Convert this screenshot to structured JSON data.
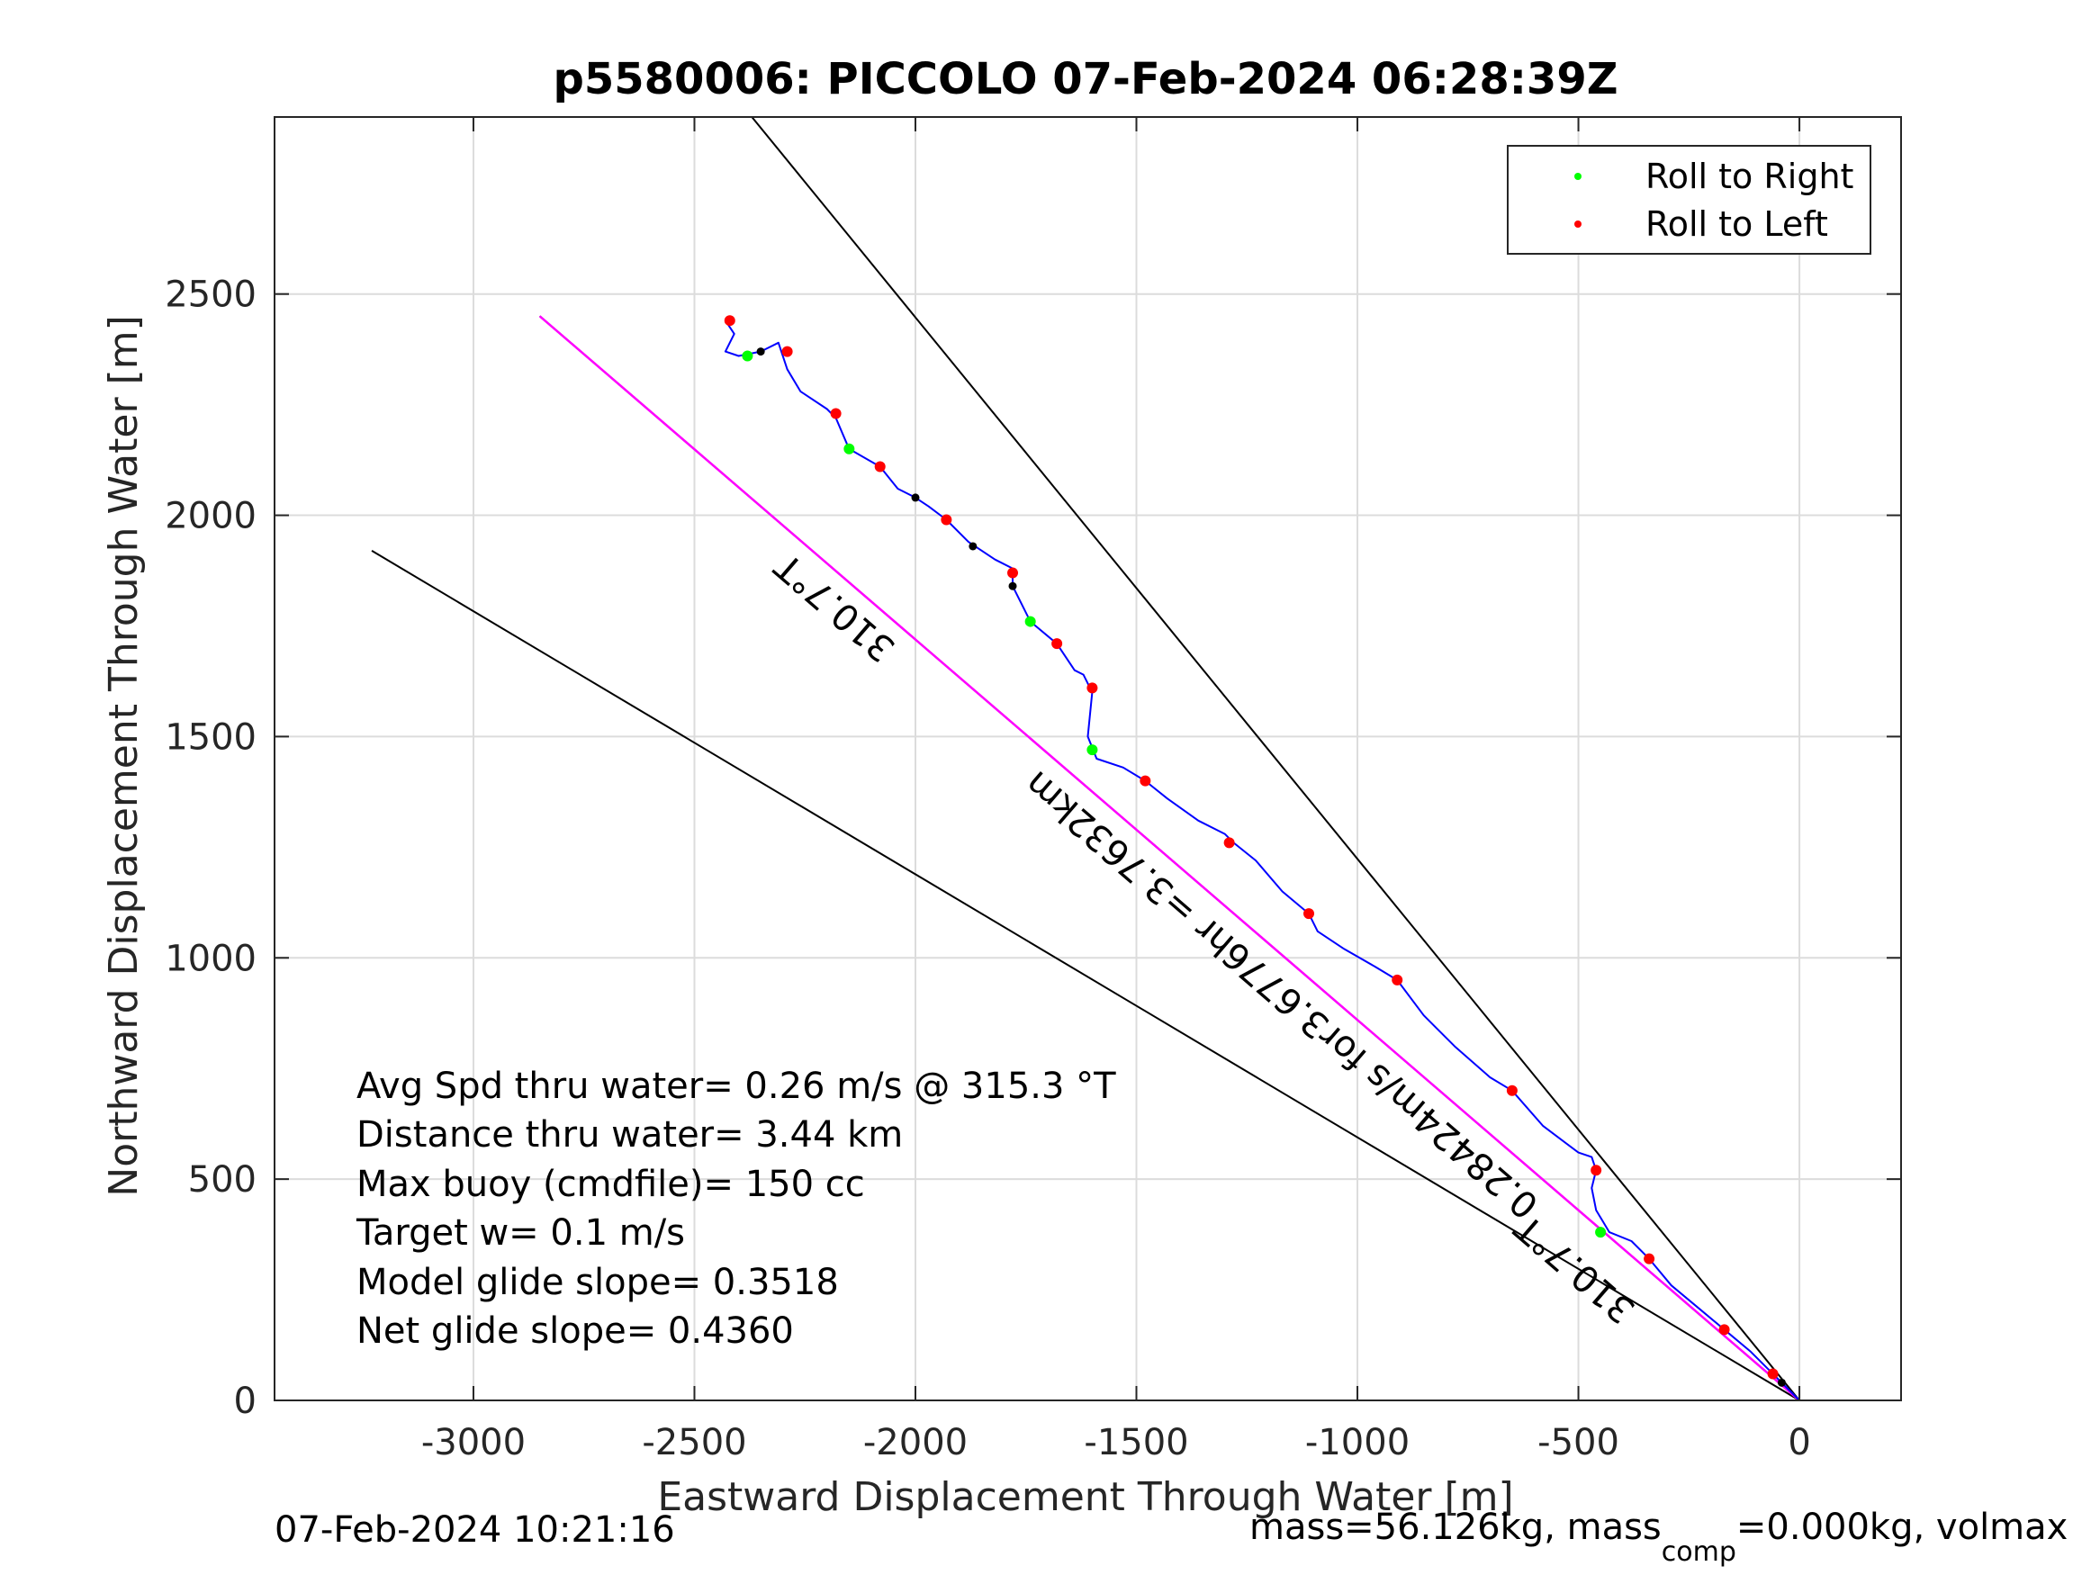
{
  "chart_data": {
    "type": "line",
    "title": "p5580006: PICCOLO 07-Feb-2024 06:28:39Z",
    "xlabel": "Eastward Displacement Through Water [m]",
    "ylabel": "Northward Displacement Through Water [m]",
    "xlim": [
      -3450,
      230
    ],
    "ylim": [
      0,
      2900
    ],
    "xticks": [
      -3000,
      -2500,
      -2000,
      -1500,
      -1000,
      -500,
      0
    ],
    "yticks": [
      0,
      500,
      1000,
      1500,
      2000,
      2500
    ],
    "grid": true,
    "legend_position": "top-right",
    "legend": [
      {
        "label": "Roll to Right",
        "color": "#00ff00"
      },
      {
        "label": "Roll to Left",
        "color": "#ff0000"
      }
    ],
    "track_color": "#0000ff",
    "track": {
      "x": [
        0,
        -60,
        -110,
        -170,
        -230,
        -290,
        -340,
        -380,
        -430,
        -460,
        -470,
        -460,
        -470,
        -500,
        -580,
        -650,
        -700,
        -780,
        -850,
        -910,
        -960,
        -1030,
        -1090,
        -1110,
        -1170,
        -1230,
        -1280,
        -1300,
        -1360,
        -1430,
        -1480,
        -1530,
        -1590,
        -1610,
        -1600,
        -1620,
        -1640,
        -1680,
        -1740,
        -1780,
        -1780,
        -1820,
        -1880,
        -1930,
        -1970,
        -2000,
        -2040,
        -2080,
        -2150,
        -2180,
        -2200,
        -2260,
        -2290,
        -2310,
        -2350,
        -2400,
        -2430,
        -2410,
        -2430
      ],
      "y": [
        0,
        60,
        110,
        160,
        210,
        260,
        320,
        360,
        380,
        430,
        480,
        520,
        550,
        560,
        620,
        700,
        730,
        800,
        870,
        950,
        980,
        1020,
        1060,
        1100,
        1150,
        1220,
        1260,
        1280,
        1310,
        1360,
        1400,
        1430,
        1450,
        1500,
        1600,
        1640,
        1650,
        1710,
        1760,
        1840,
        1880,
        1900,
        1940,
        1990,
        2020,
        2040,
        2060,
        2110,
        2150,
        2220,
        2240,
        2280,
        2330,
        2390,
        2370,
        2360,
        2370,
        2410,
        2440
      ]
    },
    "roll_right_points": [
      [
        -1600,
        1470
      ],
      [
        -1740,
        1760
      ],
      [
        -2150,
        2150
      ],
      [
        -2380,
        2360
      ],
      [
        -450,
        380
      ]
    ],
    "roll_left_points": [
      [
        -60,
        60
      ],
      [
        -170,
        160
      ],
      [
        -340,
        320
      ],
      [
        -460,
        520
      ],
      [
        -650,
        700
      ],
      [
        -910,
        950
      ],
      [
        -1110,
        1100
      ],
      [
        -1290,
        1260
      ],
      [
        -1480,
        1400
      ],
      [
        -1600,
        1610
      ],
      [
        -1680,
        1710
      ],
      [
        -1780,
        1870
      ],
      [
        -1930,
        1990
      ],
      [
        -2080,
        2110
      ],
      [
        -2180,
        2230
      ],
      [
        -2290,
        2370
      ],
      [
        -2420,
        2440
      ]
    ],
    "center_markers": [
      [
        -2000,
        2040
      ],
      [
        -1870,
        1930
      ],
      [
        -1780,
        1840
      ],
      [
        -2350,
        2370
      ],
      [
        -40,
        40
      ]
    ],
    "reference_lines": [
      {
        "from": [
          0,
          0
        ],
        "to": [
          -2850,
          2450
        ],
        "color": "#ff00ff",
        "label": "310.7°T"
      },
      {
        "from": [
          0,
          0
        ],
        "to": [
          -2850,
          2450
        ],
        "color": "#000000",
        "label": "0.28424m/s for3.6776hr =3.7632km"
      },
      {
        "from": [
          0,
          0
        ],
        "to": [
          -2370,
          2900
        ],
        "color": "#000000"
      },
      {
        "from": [
          0,
          0
        ],
        "to": [
          -3230,
          1920
        ],
        "color": "#000000"
      },
      {
        "label": "310.7°T"
      }
    ],
    "annotations": [
      "Avg Spd thru water=  0.26 m/s @ 315.3 °T",
      "Distance thru water=  3.44 km",
      "Max buoy (cmdfile)= 150 cc",
      "Target w= 0.1 m/s",
      "Model glide slope= 0.3518",
      "Net glide slope= 0.4360"
    ]
  },
  "footer": {
    "timestamp": "07-Feb-2024 10:21:16",
    "mass_a": "mass=56.126kg, mass",
    "mass_sub": "comp",
    "mass_b": "=0.000kg, volmax"
  }
}
